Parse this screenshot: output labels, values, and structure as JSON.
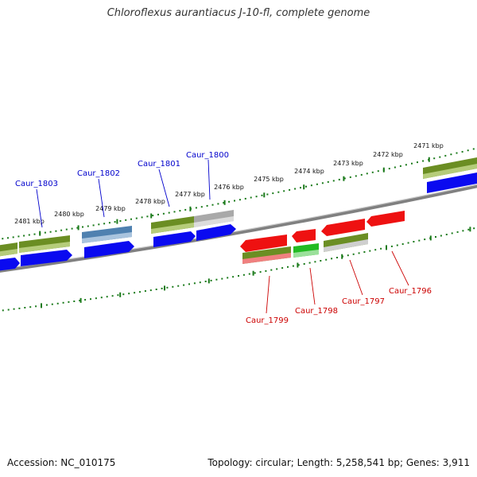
{
  "title": "Chloroflexus aurantiacus J-10-fl, complete genome",
  "footer": {
    "accession": "Accession: NC_010175",
    "topology": "Topology: circular; Length: 5,258,541 bp; Genes: 3,911"
  },
  "colors": {
    "ruler": "#1a7a1a",
    "backbone": "#808080",
    "forward_label": "#0000cc",
    "reverse_label": "#cc0000",
    "red_gene": "#ee1111",
    "green_gene": "#22bb22",
    "olive_gene": "#6b8e23",
    "blue_gene": "#0a0af0",
    "steel_gene": "#4f81b0",
    "gray_gene": "#b0b0b0"
  },
  "ticks": [
    {
      "kbp": 2481,
      "label": "2481 kbp"
    },
    {
      "kbp": 2480,
      "label": "2480 kbp"
    },
    {
      "kbp": 2479,
      "label": "2479 kbp"
    },
    {
      "kbp": 2478,
      "label": "2478 kbp"
    },
    {
      "kbp": 2477,
      "label": "2477 kbp"
    },
    {
      "kbp": 2476,
      "label": "2476 kbp"
    },
    {
      "kbp": 2475,
      "label": "2475 kbp"
    },
    {
      "kbp": 2474,
      "label": "2474 kbp"
    },
    {
      "kbp": 2473,
      "label": "2473 kbp"
    },
    {
      "kbp": 2472,
      "label": "2472 kbp"
    },
    {
      "kbp": 2471,
      "label": "2471 kbp"
    }
  ],
  "forward_genes": [
    "Caur_1803",
    "Caur_1802",
    "Caur_1801",
    "Caur_1800"
  ],
  "reverse_genes": [
    "Caur_1799",
    "Caur_1798",
    "Caur_1797",
    "Caur_1796"
  ]
}
